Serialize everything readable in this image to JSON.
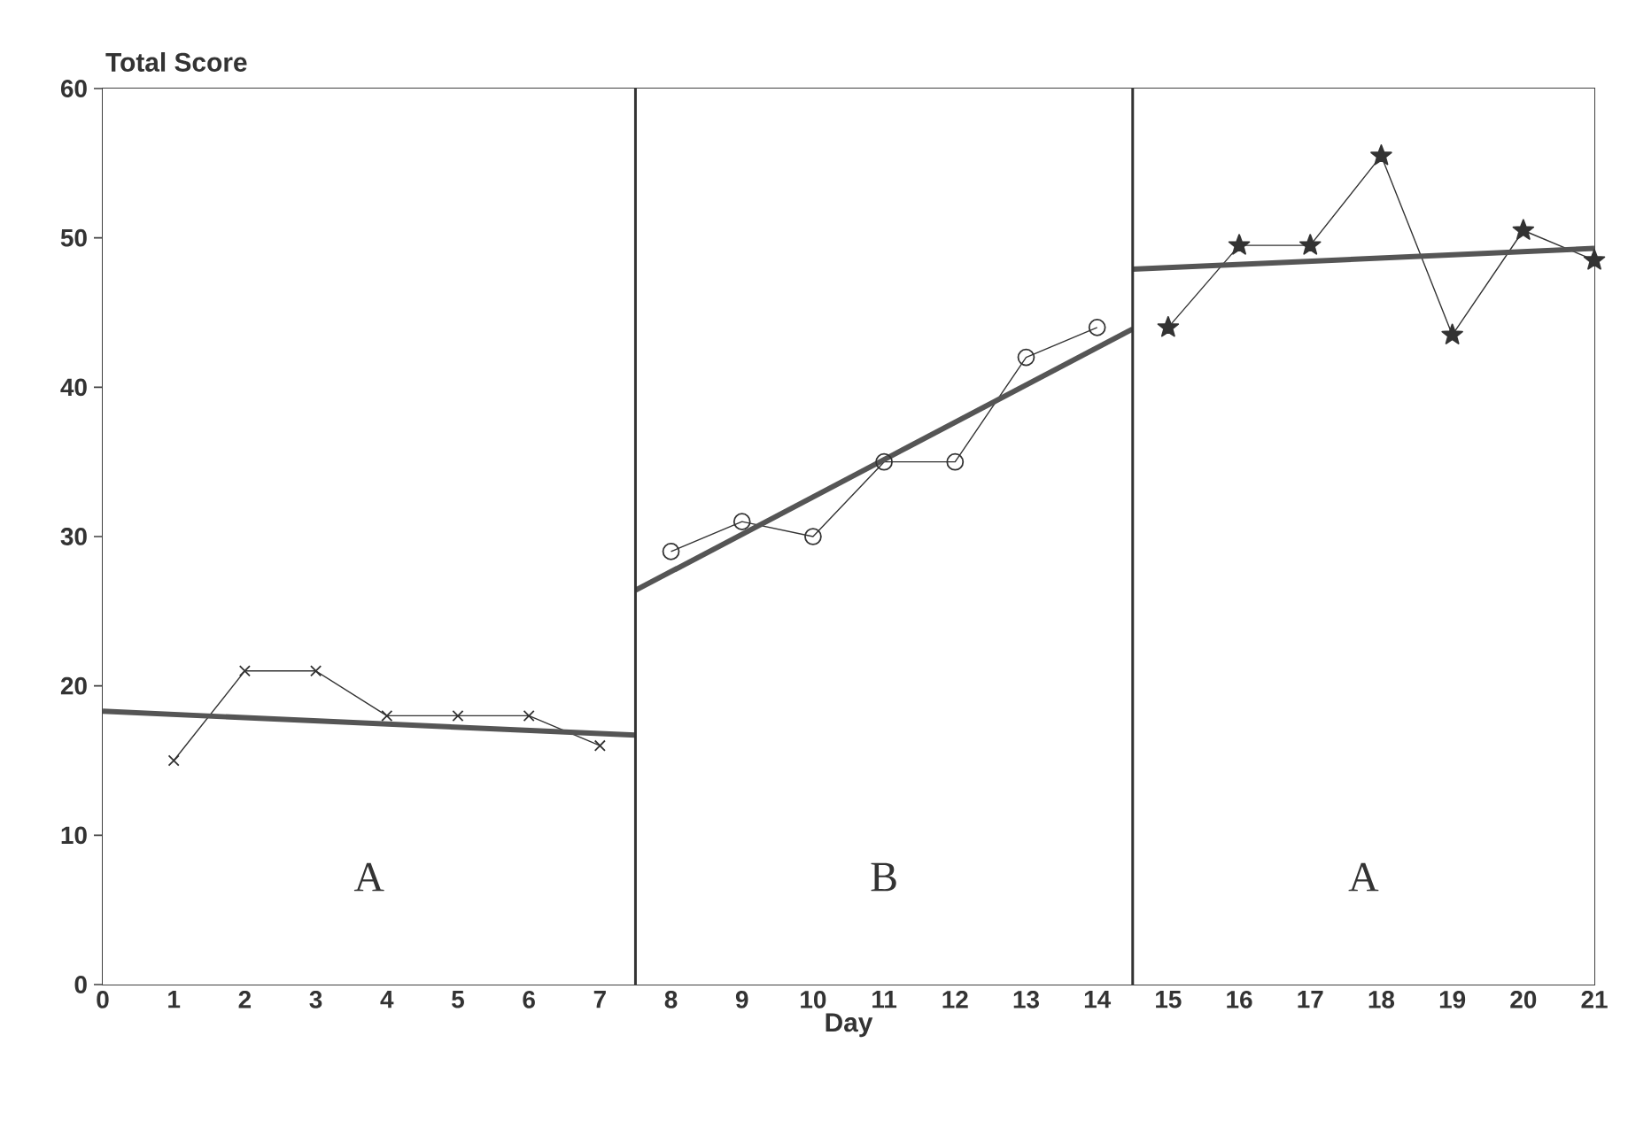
{
  "chart_data": {
    "type": "line",
    "xlabel": "Day",
    "ylabel": "Total Score",
    "xlim": [
      0,
      21
    ],
    "xticks": [
      0,
      1,
      2,
      3,
      4,
      5,
      6,
      7,
      8,
      9,
      10,
      11,
      12,
      13,
      14,
      15,
      16,
      17,
      18,
      19,
      20,
      21
    ],
    "ylim": [
      0,
      60
    ],
    "yticks": [
      0,
      10,
      20,
      30,
      40,
      50,
      60
    ],
    "series": [
      {
        "color": "#333333",
        "marker": "cross",
        "x": [
          1,
          2,
          3,
          4,
          5,
          6,
          7
        ],
        "values": [
          15,
          21,
          21,
          18,
          18,
          18,
          16
        ]
      },
      {
        "color": "#333333",
        "marker": "circle",
        "x": [
          8,
          9,
          10,
          11,
          12,
          13,
          14
        ],
        "values": [
          29,
          31,
          30,
          35,
          35,
          42,
          44
        ]
      },
      {
        "color": "#333333",
        "marker": "star",
        "x": [
          15,
          16,
          17,
          18,
          19,
          20,
          21
        ],
        "values": [
          44,
          49.5,
          49.5,
          55.5,
          43.5,
          50.5,
          48.5
        ]
      },
      {
        "color": "#555555",
        "marker": "none",
        "x": [
          0,
          7.5
        ],
        "values": [
          18.3,
          16.7
        ]
      },
      {
        "color": "#555555",
        "marker": "none",
        "x": [
          7.5,
          14.5
        ],
        "values": [
          26.4,
          43.9
        ]
      },
      {
        "color": "#555555",
        "marker": "none",
        "x": [
          14.5,
          21
        ],
        "values": [
          47.9,
          49.3
        ]
      }
    ],
    "ref_lines": [
      {
        "axis": "x",
        "value": 7.5,
        "color": "#333333"
      },
      {
        "axis": "x",
        "value": 14.5,
        "color": "#333333"
      }
    ],
    "bands": [
      {
        "axis": "x",
        "from": 0,
        "to": 7.5,
        "label": "A",
        "color": "#ffffff"
      },
      {
        "axis": "x",
        "from": 7.5,
        "to": 14.5,
        "label": "B",
        "color": "#ffffff"
      },
      {
        "axis": "x",
        "from": 14.5,
        "to": 21,
        "label": "A",
        "color": "#ffffff"
      }
    ]
  }
}
